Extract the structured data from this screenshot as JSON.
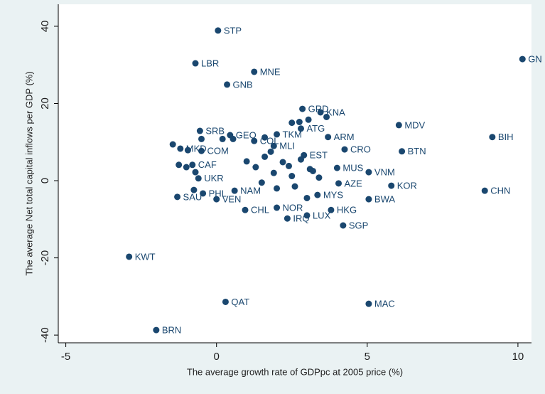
{
  "chart_data": {
    "type": "scatter",
    "x_label": "The average growth rate of GDPpc at 2005 price (%)",
    "y_label": "The average Net total capital inflows per GDP (%)",
    "color": "#1a476f",
    "xlim": [
      -5.25,
      10.45
    ],
    "ylim": [
      -42,
      45.7
    ],
    "xticks": [
      -5,
      0,
      5,
      10
    ],
    "yticks": [
      40,
      20,
      0,
      -20,
      -40
    ],
    "grid": false,
    "series": [
      {
        "name": null,
        "color": "#1a476f",
        "labels": [
          "STP",
          "LBR",
          "MNE",
          "GNB",
          "GN",
          "GRD",
          "KNA",
          "MDV",
          "BIH",
          "ATG",
          "ARM",
          "TKM",
          "SRB",
          "GEO",
          "MLI",
          "COL",
          "CRO",
          "BTN",
          "EST",
          "VNM",
          "KOR",
          "CHN",
          "BWA",
          "MYS",
          "HKG",
          "SGP",
          "LUX",
          "IRQ",
          "NOR",
          "CHL",
          "VEN",
          "SAU",
          "NAM",
          "UKR",
          "AZE",
          "MUS",
          "KWT",
          "QAT",
          "MAC",
          "BRN",
          "MKD",
          "COM",
          "CAF",
          "PHL",
          null,
          null,
          null,
          null,
          null,
          null,
          null,
          null,
          null,
          null,
          null,
          null,
          null,
          null,
          null,
          null,
          null,
          null,
          null,
          null,
          null,
          null,
          null,
          null,
          null,
          null,
          null,
          null,
          null,
          null
        ],
        "x": [
          0.05,
          -0.7,
          1.25,
          0.35,
          10.15,
          2.85,
          3.45,
          6.05,
          9.15,
          2.8,
          3.7,
          2.0,
          -0.55,
          0.45,
          1.9,
          1.25,
          4.25,
          6.15,
          2.9,
          5.05,
          5.8,
          8.9,
          5.05,
          3.35,
          3.8,
          4.2,
          3.0,
          2.35,
          2.0,
          0.95,
          0.0,
          -1.3,
          0.6,
          -0.6,
          4.05,
          4.0,
          -2.9,
          0.3,
          5.05,
          -2.0,
          -1.2,
          -0.5,
          -0.8,
          -0.45,
          -1.45,
          -0.95,
          -0.7,
          -1.25,
          -1.0,
          -0.75,
          -0.5,
          0.2,
          0.55,
          1.6,
          2.5,
          2.75,
          3.05,
          3.65,
          1.0,
          1.3,
          1.6,
          1.9,
          2.2,
          2.5,
          2.8,
          3.1,
          3.4,
          1.5,
          2.0,
          2.6,
          3.2,
          1.8,
          2.4,
          3.0
        ],
        "y": [
          38.9,
          30.4,
          28.2,
          24.9,
          31.5,
          18.6,
          17.7,
          14.4,
          11.3,
          13.5,
          11.3,
          12.0,
          12.9,
          11.8,
          9.0,
          10.3,
          8.1,
          7.6,
          6.6,
          2.2,
          -1.3,
          -2.6,
          -4.8,
          -3.7,
          -7.6,
          -11.6,
          -9.0,
          -9.8,
          -7.0,
          -7.6,
          -4.8,
          -4.2,
          -2.6,
          0.6,
          -0.7,
          3.3,
          -19.7,
          -31.4,
          -31.9,
          -38.7,
          8.3,
          7.7,
          4.1,
          -3.3,
          9.4,
          7.9,
          2.2,
          4.1,
          3.5,
          -2.4,
          10.8,
          10.8,
          10.8,
          11.2,
          15.0,
          15.2,
          15.8,
          16.5,
          5.0,
          3.5,
          6.2,
          2.0,
          4.8,
          1.2,
          5.5,
          3.0,
          0.8,
          -0.5,
          -2.0,
          -1.5,
          2.5,
          7.5,
          3.8,
          -4.5
        ]
      }
    ]
  }
}
